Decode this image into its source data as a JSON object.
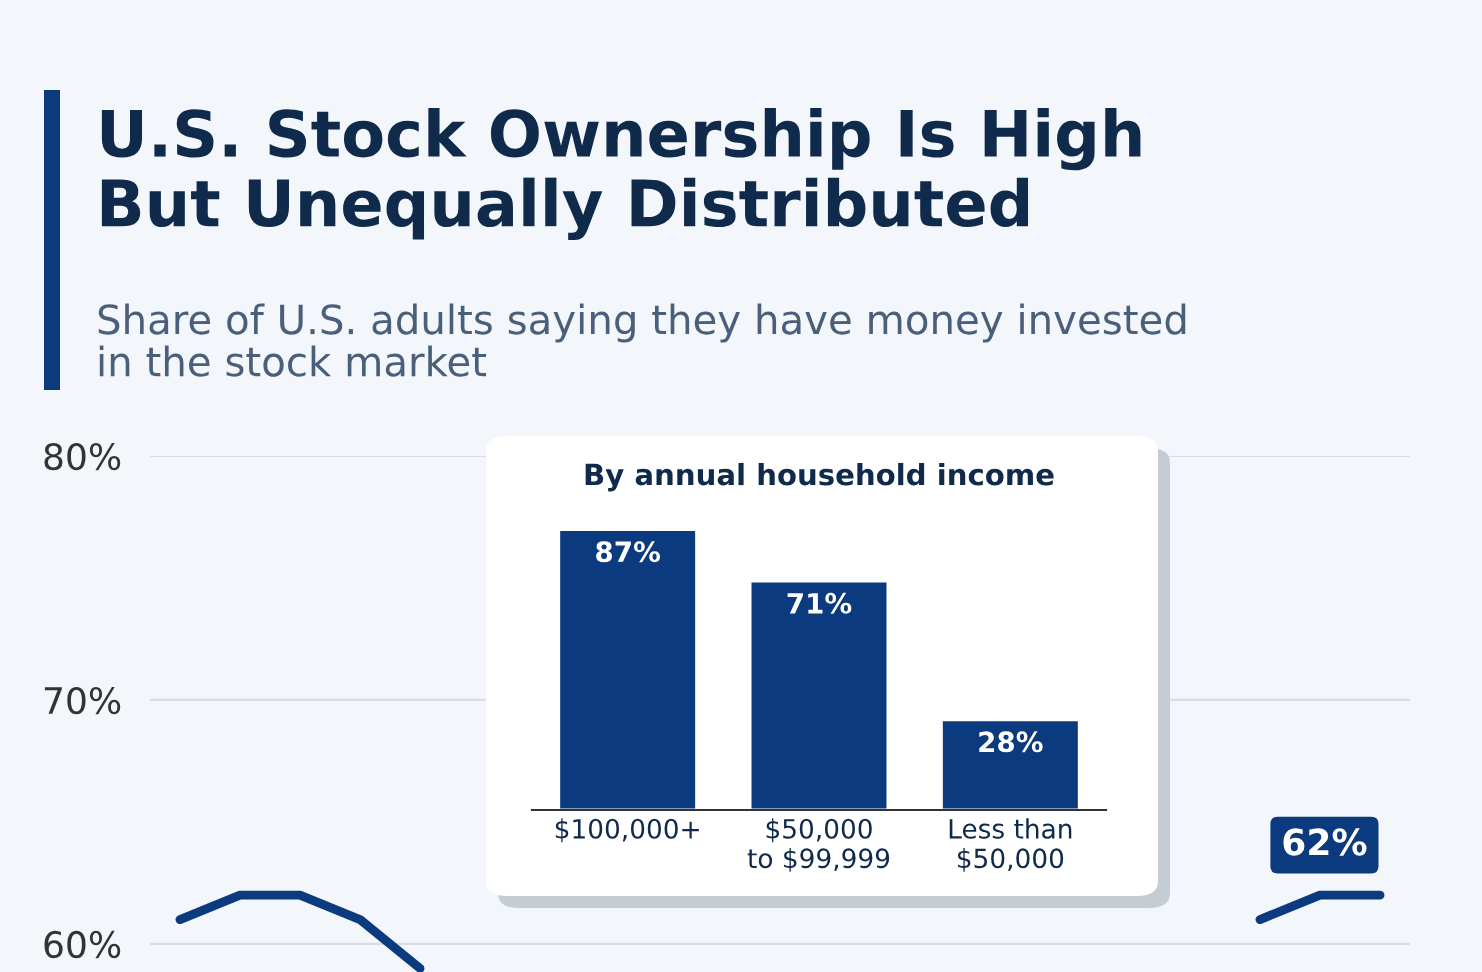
{
  "chart_data": [
    {
      "type": "line",
      "title": "U.S. Stock Ownership Is High\nBut Unequally Distributed",
      "subtitle": "Share of U.S. adults saying they have money invested\nin the stock market",
      "categories": [
        null,
        null,
        null,
        null,
        null,
        null,
        null,
        null,
        null,
        null,
        null,
        null,
        null,
        null,
        null,
        null,
        null,
        null,
        null,
        null,
        null
      ],
      "series": [
        {
          "color": "#0b3a7e",
          "values": [
            61,
            62,
            62,
            61,
            59,
            null,
            null,
            null,
            null,
            null,
            null,
            null,
            null,
            null,
            null,
            null,
            null,
            null,
            61,
            62,
            62
          ],
          "value_labels": [
            null,
            null,
            null,
            null,
            null,
            null,
            null,
            null,
            null,
            null,
            null,
            null,
            null,
            null,
            null,
            null,
            null,
            null,
            null,
            null,
            "62%"
          ]
        }
      ],
      "ylim": [
        58.85,
        80
      ],
      "yticks": [
        {
          "value": 60,
          "label": "60%"
        },
        {
          "value": 70,
          "label": "70%"
        },
        {
          "value": 80,
          "label": "80%"
        }
      ],
      "grid": "y",
      "tick_labels": "y",
      "marker": "none",
      "line_style": "solid"
    },
    {
      "type": "bar",
      "title": "By annual household income",
      "categories": [
        "$100,000+",
        "$50,000\nto $99,999",
        "Less than\n$50,000"
      ],
      "values": [
        87,
        71,
        28
      ],
      "value_labels": [
        "87%",
        "71%",
        "28%"
      ],
      "color": "#0b3a7e"
    }
  ]
}
